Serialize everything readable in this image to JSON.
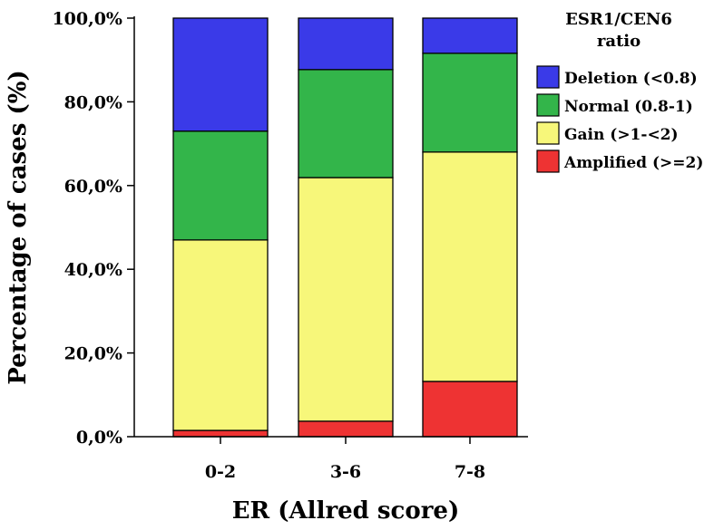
{
  "chart_data": {
    "type": "bar",
    "stacked": true,
    "xlabel": "ER (Allred score)",
    "ylabel": "Percentage of cases (%)",
    "ylim": [
      0,
      100
    ],
    "yticks": [
      "0,0%",
      "20,0%",
      "40,0%",
      "60,0%",
      "80,0%",
      "100,0%"
    ],
    "categories": [
      "0-2",
      "3-6",
      "7-8"
    ],
    "legend": {
      "title_lines": [
        "ESR1/CEN6",
        "ratio"
      ],
      "position": "top-right"
    },
    "series": [
      {
        "name": "Amplified (>=2)",
        "color": "#ee3333",
        "values": [
          1.5,
          3.7,
          13.2
        ]
      },
      {
        "name": "Gain (>1-<2)",
        "color": "#f7f77a",
        "values": [
          45.5,
          58.2,
          54.8
        ]
      },
      {
        "name": "Normal (0.8-1)",
        "color": "#33b54a",
        "values": [
          26.0,
          25.8,
          23.6
        ]
      },
      {
        "name": "Deletion (<0.8)",
        "color": "#3a3ae8",
        "values": [
          27.0,
          12.3,
          8.4
        ]
      }
    ],
    "legend_order": [
      "Deletion (<0.8)",
      "Normal (0.8-1)",
      "Gain (>1-<2)",
      "Amplified (>=2)"
    ]
  }
}
